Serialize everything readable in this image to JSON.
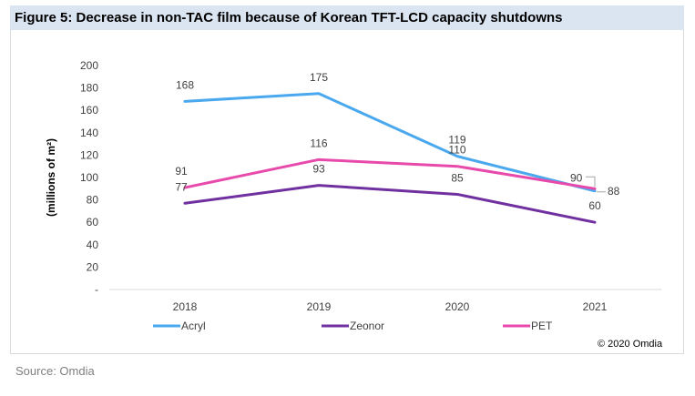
{
  "title": "Figure 5: Decrease in non-TAC film because of Korean TFT-LCD capacity shutdowns",
  "source": "Source: Omdia",
  "copyright": "© 2020 Omdia",
  "chart_data": {
    "type": "line",
    "title": "Figure 5: Decrease in non-TAC film because of Korean TFT-LCD capacity shutdowns",
    "xlabel": "",
    "ylabel": "(millions of m²)",
    "categories": [
      "2018",
      "2019",
      "2020",
      "2021"
    ],
    "ylim": [
      0,
      200
    ],
    "yticks": [
      "-",
      "20",
      "40",
      "60",
      "80",
      "100",
      "120",
      "140",
      "160",
      "180",
      "200"
    ],
    "grid": false,
    "legend_position": "bottom",
    "series": [
      {
        "name": "Acryl",
        "values": [
          168,
          175,
          119,
          88
        ],
        "color": "#4aa8ee"
      },
      {
        "name": "Zeonor",
        "values": [
          77,
          93,
          85,
          60
        ],
        "color": "#7030a0"
      },
      {
        "name": "PET",
        "values": [
          91,
          116,
          110,
          90
        ],
        "color": "#e84aac"
      }
    ]
  }
}
